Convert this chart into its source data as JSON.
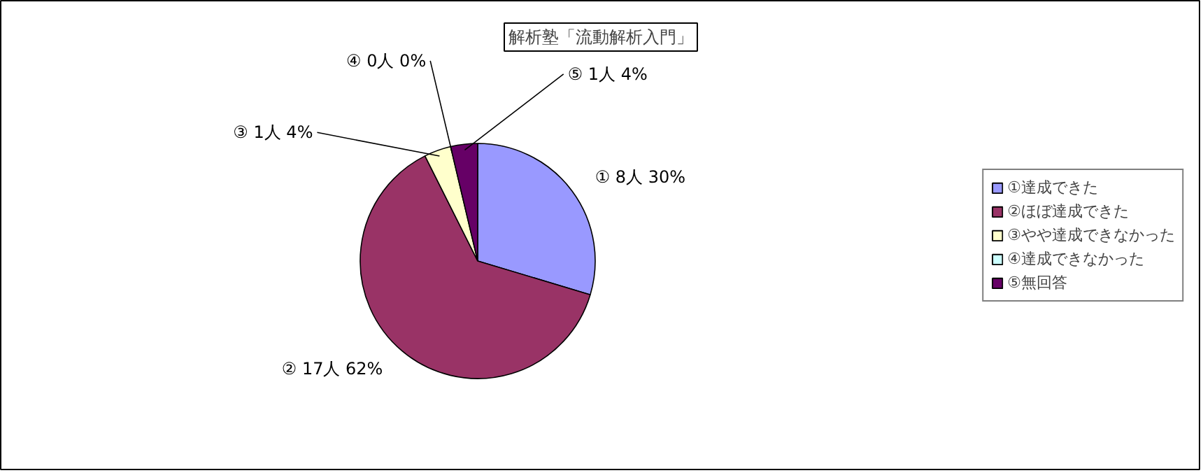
{
  "chart_data": {
    "type": "pie",
    "title": "解析塾「流動解析入門」",
    "categories": [
      "①達成できた",
      "②ほぼ達成できた",
      "③やや達成できなかった",
      "④達成できなかった",
      "⑤無回答"
    ],
    "values": [
      8,
      17,
      1,
      0,
      1
    ],
    "colors": [
      "#9999ff",
      "#993366",
      "#ffffcc",
      "#ccffff",
      "#660066"
    ],
    "value_labels": [
      "① 8人 30%",
      "② 17人 62%",
      "③ 1人 4%",
      "④ 0人 0%",
      "⑤ 1人 4%"
    ],
    "legend": "right"
  }
}
